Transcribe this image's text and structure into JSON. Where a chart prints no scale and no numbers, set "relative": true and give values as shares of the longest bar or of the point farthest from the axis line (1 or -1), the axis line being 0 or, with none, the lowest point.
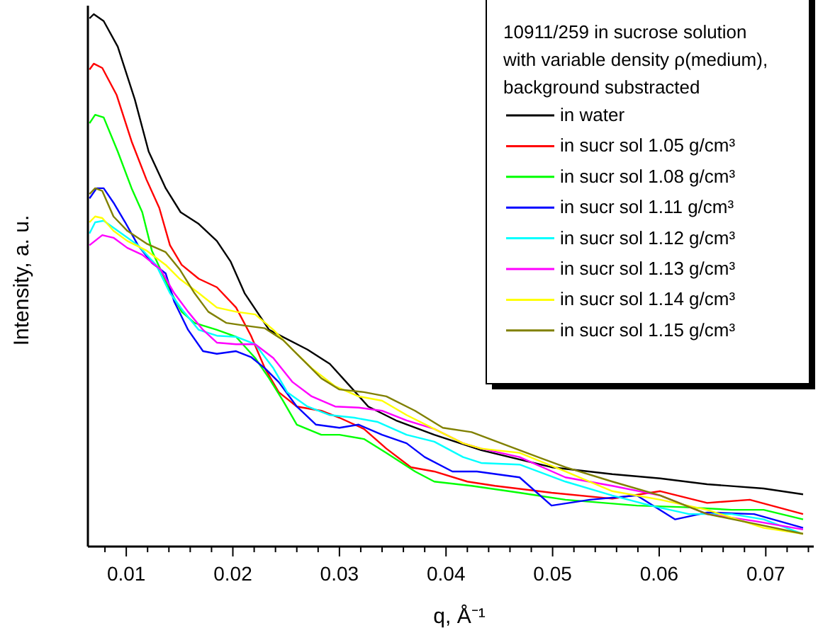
{
  "chart_data": {
    "type": "line",
    "relative": true,
    "xlabel": "q, Å⁻¹",
    "ylabel": "Intensity, a. u.",
    "legend_title": "10911/259 in sucrose solution with variable density ρ(medium), background substracted",
    "legend": "top right",
    "grid": false,
    "line_style": "solid",
    "marker": "none",
    "xlim": [
      0.0064,
      0.0745
    ],
    "xticks": [
      {
        "value": 0.008,
        "label": null
      },
      0.01,
      {
        "value": 0.012,
        "label": null
      },
      {
        "value": 0.014,
        "label": null
      },
      {
        "value": 0.016,
        "label": null
      },
      {
        "value": 0.018,
        "label": null
      },
      0.02,
      {
        "value": 0.022,
        "label": null
      },
      {
        "value": 0.024,
        "label": null
      },
      {
        "value": 0.026,
        "label": null
      },
      {
        "value": 0.028,
        "label": null
      },
      0.03,
      {
        "value": 0.032,
        "label": null
      },
      {
        "value": 0.034,
        "label": null
      },
      {
        "value": 0.036,
        "label": null
      },
      {
        "value": 0.038,
        "label": null
      },
      0.04,
      {
        "value": 0.042,
        "label": null
      },
      {
        "value": 0.044,
        "label": null
      },
      {
        "value": 0.046,
        "label": null
      },
      {
        "value": 0.048,
        "label": null
      },
      0.05,
      {
        "value": 0.052,
        "label": null
      },
      {
        "value": 0.054,
        "label": null
      },
      {
        "value": 0.056,
        "label": null
      },
      {
        "value": 0.058,
        "label": null
      },
      0.06,
      {
        "value": 0.062,
        "label": null
      },
      {
        "value": 0.064,
        "label": null
      },
      {
        "value": 0.066,
        "label": null
      },
      {
        "value": 0.068,
        "label": null
      },
      0.07,
      {
        "value": 0.072,
        "label": null
      },
      {
        "value": 0.074,
        "label": null
      }
    ],
    "series": [
      {
        "name": "in water",
        "color": "#000000",
        "x": [
          0.00655,
          0.00695,
          0.00788,
          0.0092,
          0.0108,
          0.0121,
          0.0137,
          0.0151,
          0.0168,
          0.0185,
          0.0198,
          0.0211,
          0.0234,
          0.027,
          0.0291,
          0.031,
          0.0327,
          0.0353,
          0.0389,
          0.0433,
          0.0499,
          0.0556,
          0.0601,
          0.0645,
          0.0698,
          0.0735
        ],
        "values": [
          0.992,
          1.0,
          0.987,
          0.939,
          0.84,
          0.742,
          0.673,
          0.628,
          0.606,
          0.574,
          0.535,
          0.476,
          0.407,
          0.37,
          0.343,
          0.301,
          0.263,
          0.237,
          0.21,
          0.181,
          0.149,
          0.136,
          0.128,
          0.117,
          0.109,
          0.098
        ]
      },
      {
        "name": "in sucr sol 1.05 g/cm³",
        "color": "#ff0000",
        "x": [
          0.00655,
          0.00695,
          0.00775,
          0.0091,
          0.0105,
          0.0119,
          0.0131,
          0.0141,
          0.0152,
          0.0168,
          0.0185,
          0.0203,
          0.0217,
          0.023,
          0.0243,
          0.026,
          0.0283,
          0.03,
          0.0323,
          0.0344,
          0.0367,
          0.0389,
          0.042,
          0.0446,
          0.0499,
          0.0556,
          0.0601,
          0.0645,
          0.0685,
          0.0735
        ],
        "values": [
          0.896,
          0.907,
          0.899,
          0.848,
          0.761,
          0.689,
          0.636,
          0.566,
          0.529,
          0.503,
          0.487,
          0.449,
          0.396,
          0.335,
          0.29,
          0.263,
          0.255,
          0.242,
          0.221,
          0.184,
          0.149,
          0.141,
          0.122,
          0.114,
          0.101,
          0.09,
          0.104,
          0.082,
          0.088,
          0.061
        ]
      },
      {
        "name": "in sucr sol 1.08 g/cm³",
        "color": "#00ff00",
        "x": [
          0.00655,
          0.00708,
          0.00788,
          0.0092,
          0.0105,
          0.0115,
          0.0124,
          0.0132,
          0.0141,
          0.0152,
          0.0164,
          0.0185,
          0.0203,
          0.0221,
          0.0234,
          0.0247,
          0.026,
          0.0283,
          0.03,
          0.0323,
          0.0344,
          0.0371,
          0.0389,
          0.0424,
          0.0469,
          0.0512,
          0.0579,
          0.0623,
          0.0668,
          0.0698,
          0.0735
        ],
        "values": [
          0.795,
          0.811,
          0.806,
          0.742,
          0.673,
          0.628,
          0.556,
          0.521,
          0.481,
          0.441,
          0.42,
          0.407,
          0.394,
          0.354,
          0.316,
          0.274,
          0.229,
          0.21,
          0.21,
          0.202,
          0.176,
          0.141,
          0.122,
          0.114,
          0.101,
          0.088,
          0.077,
          0.074,
          0.069,
          0.069,
          0.051
        ]
      },
      {
        "name": "in sucr sol 1.11 g/cm³",
        "color": "#0000ff",
        "x": [
          0.00655,
          0.00722,
          0.00788,
          0.0088,
          0.0099,
          0.0111,
          0.0124,
          0.0137,
          0.0145,
          0.0158,
          0.0172,
          0.0185,
          0.0203,
          0.0217,
          0.023,
          0.0243,
          0.026,
          0.0278,
          0.03,
          0.0318,
          0.034,
          0.0363,
          0.038,
          0.0406,
          0.0429,
          0.0469,
          0.0499,
          0.0535,
          0.0579,
          0.0615,
          0.0645,
          0.0689,
          0.0735
        ],
        "values": [
          0.654,
          0.673,
          0.673,
          0.646,
          0.609,
          0.566,
          0.533,
          0.513,
          0.46,
          0.407,
          0.367,
          0.362,
          0.367,
          0.356,
          0.335,
          0.309,
          0.263,
          0.229,
          0.223,
          0.229,
          0.21,
          0.194,
          0.168,
          0.141,
          0.141,
          0.13,
          0.077,
          0.088,
          0.096,
          0.051,
          0.064,
          0.061,
          0.035
        ]
      },
      {
        "name": "in sucr sol 1.12 g/cm³",
        "color": "#00ffff",
        "x": [
          0.00655,
          0.00708,
          0.00788,
          0.0092,
          0.0111,
          0.0128,
          0.0141,
          0.0154,
          0.0168,
          0.0185,
          0.0203,
          0.0221,
          0.0238,
          0.0251,
          0.027,
          0.0291,
          0.0314,
          0.0336,
          0.0363,
          0.0389,
          0.0416,
          0.0433,
          0.0469,
          0.0512,
          0.0556,
          0.0592,
          0.0628,
          0.0668,
          0.0698,
          0.0734
        ],
        "values": [
          0.588,
          0.609,
          0.612,
          0.593,
          0.566,
          0.529,
          0.476,
          0.441,
          0.407,
          0.396,
          0.394,
          0.38,
          0.335,
          0.29,
          0.263,
          0.247,
          0.242,
          0.234,
          0.21,
          0.197,
          0.168,
          0.157,
          0.154,
          0.122,
          0.096,
          0.077,
          0.061,
          0.061,
          0.051,
          0.024
        ]
      },
      {
        "name": "in sucr sol 1.13 g/cm³",
        "color": "#ff00ff",
        "x": [
          0.00655,
          0.00775,
          0.0088,
          0.0101,
          0.0115,
          0.0132,
          0.0145,
          0.0158,
          0.0172,
          0.0185,
          0.0203,
          0.0221,
          0.0238,
          0.0256,
          0.0274,
          0.0296,
          0.0318,
          0.034,
          0.0363,
          0.0389,
          0.0416,
          0.0433,
          0.0469,
          0.0512,
          0.0556,
          0.0601,
          0.0645,
          0.0689,
          0.0735
        ],
        "values": [
          0.566,
          0.585,
          0.58,
          0.561,
          0.548,
          0.521,
          0.476,
          0.441,
          0.407,
          0.383,
          0.38,
          0.38,
          0.354,
          0.309,
          0.282,
          0.263,
          0.261,
          0.255,
          0.237,
          0.221,
          0.194,
          0.184,
          0.168,
          0.13,
          0.114,
          0.096,
          0.061,
          0.048,
          0.032
        ]
      },
      {
        "name": "in sucr sol 1.14 g/cm³",
        "color": "#ffff00",
        "x": [
          0.00655,
          0.00708,
          0.00775,
          0.0088,
          0.0101,
          0.0119,
          0.0137,
          0.015,
          0.0168,
          0.0185,
          0.0203,
          0.0221,
          0.0238,
          0.0256,
          0.0274,
          0.0296,
          0.0318,
          0.034,
          0.0363,
          0.0389,
          0.0416,
          0.0433,
          0.0469,
          0.0512,
          0.0556,
          0.0601,
          0.0645,
          0.0698,
          0.0735
        ],
        "values": [
          0.609,
          0.62,
          0.617,
          0.593,
          0.574,
          0.556,
          0.529,
          0.503,
          0.476,
          0.449,
          0.441,
          0.436,
          0.407,
          0.37,
          0.335,
          0.301,
          0.282,
          0.274,
          0.247,
          0.221,
          0.194,
          0.184,
          0.176,
          0.141,
          0.104,
          0.088,
          0.069,
          0.035,
          0.024
        ]
      },
      {
        "name": "in sucr sol 1.15 g/cm³",
        "color": "#808000",
        "x": [
          0.00655,
          0.00708,
          0.00775,
          0.0088,
          0.0101,
          0.0119,
          0.0137,
          0.015,
          0.0164,
          0.0177,
          0.0194,
          0.0211,
          0.023,
          0.0247,
          0.0264,
          0.0283,
          0.03,
          0.0323,
          0.0344,
          0.0371,
          0.0397,
          0.0424,
          0.0469,
          0.0512,
          0.0556,
          0.0601,
          0.0645,
          0.0689,
          0.0735
        ],
        "values": [
          0.662,
          0.673,
          0.668,
          0.62,
          0.593,
          0.569,
          0.553,
          0.521,
          0.476,
          0.441,
          0.42,
          0.415,
          0.41,
          0.388,
          0.354,
          0.316,
          0.295,
          0.29,
          0.282,
          0.255,
          0.223,
          0.215,
          0.181,
          0.149,
          0.122,
          0.096,
          0.061,
          0.043,
          0.024
        ]
      }
    ]
  }
}
